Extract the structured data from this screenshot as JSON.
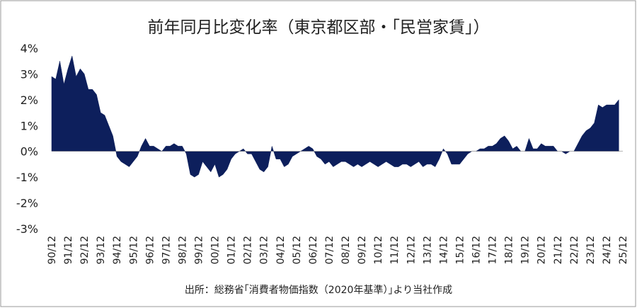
{
  "chart_data": {
    "type": "area",
    "title": "前年同月比変化率（東京都区部・｢民営家賃｣）",
    "source": "出所：総務省｢消費者物価指数（2020年基準）｣より当社作成",
    "color": "#0d1f5c",
    "ylim": [
      -3,
      4
    ],
    "yticks": [
      {
        "value": -3,
        "label": "-3%"
      },
      {
        "value": -2,
        "label": "-2%"
      },
      {
        "value": -1,
        "label": "-1%"
      },
      {
        "value": 0,
        "label": "0%"
      },
      {
        "value": 1,
        "label": "1%"
      },
      {
        "value": 2,
        "label": "2%"
      },
      {
        "value": 3,
        "label": "3%"
      },
      {
        "value": 4,
        "label": "4%"
      }
    ],
    "categories": [
      "90/12",
      null,
      null,
      null,
      "91/12",
      null,
      null,
      null,
      "92/12",
      null,
      null,
      null,
      "93/12",
      null,
      null,
      null,
      "94/12",
      null,
      null,
      null,
      "95/12",
      null,
      null,
      null,
      "96/12",
      null,
      null,
      null,
      "97/12",
      null,
      null,
      null,
      "98/12",
      null,
      null,
      null,
      "99/12",
      null,
      null,
      null,
      "00/12",
      null,
      null,
      null,
      "01/12",
      null,
      null,
      null,
      "02/12",
      null,
      null,
      null,
      "03/12",
      null,
      null,
      null,
      "04/12",
      null,
      null,
      null,
      "05/12",
      null,
      null,
      null,
      "06/12",
      null,
      null,
      null,
      "07/12",
      null,
      null,
      null,
      "08/12",
      null,
      null,
      null,
      "09/12",
      null,
      null,
      null,
      "10/12",
      null,
      null,
      null,
      "11/12",
      null,
      null,
      null,
      "12/12",
      null,
      null,
      null,
      "13/12",
      null,
      null,
      null,
      "14/12",
      null,
      null,
      null,
      "15/12",
      null,
      null,
      null,
      "16/12",
      null,
      null,
      null,
      "17/12",
      null,
      null,
      null,
      "18/12",
      null,
      null,
      null,
      "19/12",
      null,
      null,
      null,
      "20/12",
      null,
      null,
      null,
      "21/12",
      null,
      null,
      null,
      "22/12",
      null,
      null,
      null,
      "23/12",
      null,
      null,
      null,
      "24/12",
      null,
      null,
      null,
      "25/12"
    ],
    "values": [
      2.9,
      2.8,
      3.5,
      2.6,
      3.2,
      3.7,
      2.9,
      3.2,
      3.0,
      2.4,
      2.4,
      2.2,
      1.5,
      1.4,
      1.0,
      0.6,
      -0.2,
      -0.4,
      -0.5,
      -0.6,
      -0.4,
      -0.2,
      0.2,
      0.5,
      0.2,
      0.2,
      0.1,
      0.0,
      0.2,
      0.2,
      0.3,
      0.2,
      0.2,
      -0.1,
      -0.9,
      -1.0,
      -0.9,
      -0.4,
      -0.6,
      -0.8,
      -0.5,
      -1.0,
      -0.9,
      -0.7,
      -0.3,
      -0.1,
      0.0,
      0.1,
      -0.1,
      -0.1,
      -0.4,
      -0.7,
      -0.8,
      -0.6,
      0.2,
      -0.3,
      -0.3,
      -0.6,
      -0.5,
      -0.2,
      -0.1,
      0.0,
      0.1,
      0.2,
      0.1,
      -0.2,
      -0.3,
      -0.5,
      -0.4,
      -0.6,
      -0.5,
      -0.4,
      -0.4,
      -0.5,
      -0.6,
      -0.5,
      -0.6,
      -0.5,
      -0.4,
      -0.5,
      -0.6,
      -0.5,
      -0.4,
      -0.5,
      -0.6,
      -0.6,
      -0.5,
      -0.5,
      -0.6,
      -0.5,
      -0.4,
      -0.6,
      -0.5,
      -0.5,
      -0.6,
      -0.3,
      0.1,
      -0.1,
      -0.5,
      -0.5,
      -0.5,
      -0.3,
      -0.1,
      0.0,
      0.0,
      0.1,
      0.1,
      0.2,
      0.2,
      0.3,
      0.5,
      0.6,
      0.4,
      0.1,
      0.2,
      0.0,
      0.0,
      0.5,
      0.1,
      0.1,
      0.3,
      0.2,
      0.2,
      0.2,
      0.0,
      0.0,
      -0.1,
      0.0,
      0.0,
      0.3,
      0.6,
      0.8,
      0.9,
      1.1,
      1.8,
      1.7,
      1.8,
      1.8,
      1.8,
      2.0,
      null
    ]
  }
}
